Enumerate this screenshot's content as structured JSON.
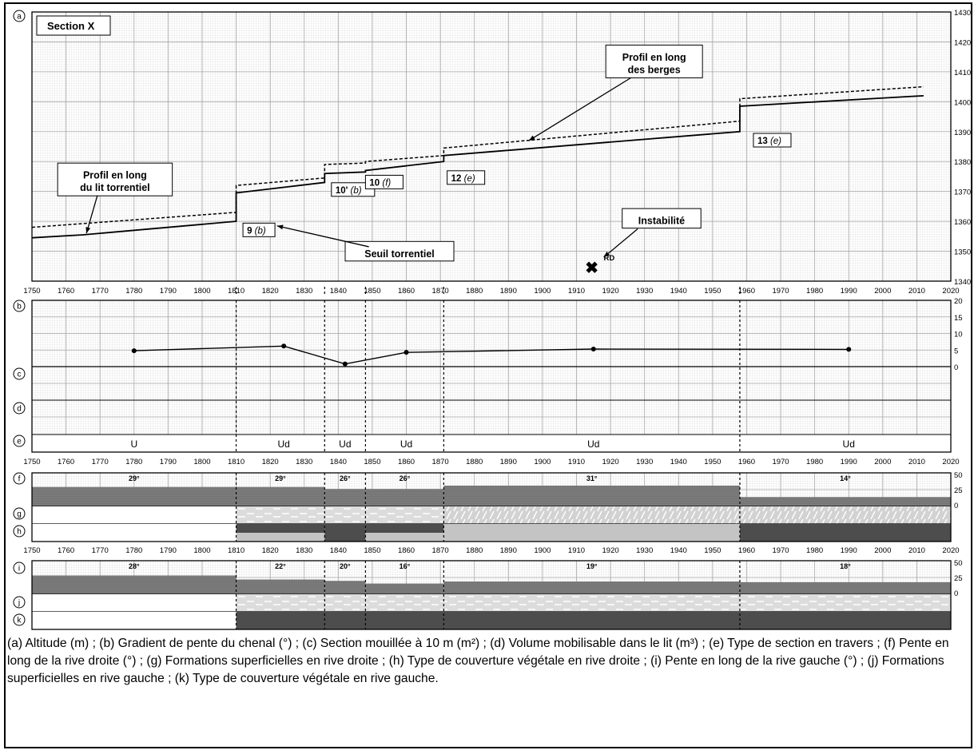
{
  "colors": {
    "grid_minor": "#d9d9d9",
    "grid_major": "#a6a6a6",
    "dark": "#4d4d4d",
    "medium": "#808080",
    "light": "#c4c4c4",
    "ink": "#000000"
  },
  "caption": "(a) Altitude (m) ; (b) Gradient de pente du chenal (°) ; (c) Section mouillée à 10 m (m²) ; (d) Volume mobilisable dans le lit (m³) ; (e) Type de section en travers ; (f) Pente en long de la rive droite (°) ; (g) Formations superficielles en rive droite ; (h) Type de couverture végétale en rive droite ; (i) Pente en long de la rive gauche (°) ; (j) Formations superficielles en rive gauche ; (k) Type de couverture végétale en rive gauche.",
  "chart_data": [
    {
      "panel": "a",
      "type": "line",
      "title": "Section X",
      "xlim": [
        1750,
        2020
      ],
      "ylim": [
        1340,
        1430
      ],
      "x_ticks": [
        1750,
        1760,
        1770,
        1780,
        1790,
        1800,
        1810,
        1820,
        1830,
        1840,
        1850,
        1860,
        1870,
        1880,
        1890,
        1900,
        1910,
        1920,
        1930,
        1940,
        1950,
        1960,
        1970,
        1980,
        1990,
        2000,
        2010,
        2020
      ],
      "y_ticks": [
        1340,
        1350,
        1360,
        1370,
        1380,
        1390,
        1400,
        1410,
        1420,
        1430
      ],
      "series": [
        {
          "name": "Profil en long du lit torrentiel",
          "style": "solid",
          "x": [
            1750,
            1765,
            1810,
            1810,
            1836,
            1836,
            1848,
            1848,
            1871,
            1871,
            1958,
            1958,
            2012
          ],
          "y": [
            1354.5,
            1355.5,
            1360,
            1369.5,
            1373,
            1376,
            1376.5,
            1377,
            1380,
            1382,
            1390,
            1398.5,
            1402
          ]
        },
        {
          "name": "Profil en long des berges",
          "style": "dashed",
          "x": [
            1750,
            1810,
            1810,
            1836,
            1836,
            1848,
            1848,
            1871,
            1871,
            1958,
            1958,
            2012
          ],
          "y": [
            1358,
            1363,
            1372,
            1374.5,
            1379,
            1379.5,
            1380,
            1382,
            1384.5,
            1393.5,
            1401,
            1405
          ]
        }
      ],
      "annotations": [
        {
          "text": "Profil en long du lit torrentiel",
          "x": 1765,
          "y": 1374
        },
        {
          "text": "Profil en long des berges",
          "x": 1930,
          "y": 1414
        },
        {
          "text": "Seuil torrentiel",
          "x": 1858,
          "y": 1350
        },
        {
          "text": "Instabilité",
          "x": 1935,
          "y": 1361
        },
        {
          "text": "RD",
          "x": 1918,
          "y": 1347
        }
      ],
      "marker": {
        "symbol": "✖",
        "x": 1914.5,
        "y": 1344.5
      },
      "sills": [
        {
          "num": "9",
          "code": "(b)",
          "x": 1812,
          "y": 1357
        },
        {
          "num": "10'",
          "code": "(b)",
          "x": 1838,
          "y": 1370.5
        },
        {
          "num": "10",
          "code": "(f)",
          "x": 1848,
          "y": 1373
        },
        {
          "num": "12",
          "code": "(e)",
          "x": 1872,
          "y": 1374.5
        },
        {
          "num": "13",
          "code": "(e)",
          "x": 1962,
          "y": 1387
        }
      ]
    },
    {
      "panel": "b",
      "type": "line",
      "xlim": [
        1750,
        2020
      ],
      "ylim": [
        0,
        20
      ],
      "y_ticks": [
        0,
        5,
        10,
        15,
        20
      ],
      "x": [
        1780,
        1824,
        1842,
        1860,
        1915,
        1990
      ],
      "values": [
        4.8,
        6.2,
        0.8,
        4.3,
        5.3,
        5.2
      ]
    },
    {
      "panel": "e",
      "type": "table",
      "boundaries": [
        1750,
        1810,
        1836,
        1848,
        1871,
        1958,
        2020
      ],
      "values": [
        "U",
        "Ud",
        "Ud",
        "Ud",
        "Ud",
        "Ud"
      ]
    },
    {
      "panel": "f",
      "type": "bar",
      "boundaries": [
        1750,
        1810,
        1836,
        1848,
        1871,
        1958,
        2020
      ],
      "values": [
        29,
        29,
        26,
        26,
        31,
        14
      ],
      "labels": [
        "29°",
        "29°",
        "26°",
        "26°",
        "31°",
        "14°"
      ],
      "y_ticks": [
        0,
        25,
        50
      ]
    },
    {
      "panel": "g",
      "type": "table",
      "segments": [
        {
          "x0": 1750,
          "x1": 1810,
          "fill": "none"
        },
        {
          "x0": 1810,
          "x1": 1871,
          "fill": "dashes"
        },
        {
          "x0": 1871,
          "x1": 1958,
          "fill": "hatch"
        },
        {
          "x0": 1958,
          "x1": 2020,
          "fill": "hatch"
        }
      ]
    },
    {
      "panel": "h",
      "type": "table",
      "segments": [
        {
          "x0": 1750,
          "x1": 1810,
          "fill": "none"
        },
        {
          "x0": 1810,
          "x1": 1836,
          "fill": "dark-over-light"
        },
        {
          "x0": 1836,
          "x1": 1848,
          "fill": "dark"
        },
        {
          "x0": 1848,
          "x1": 1871,
          "fill": "dark-over-light"
        },
        {
          "x0": 1871,
          "x1": 1958,
          "fill": "light"
        },
        {
          "x0": 1958,
          "x1": 2020,
          "fill": "dark"
        }
      ]
    },
    {
      "panel": "i",
      "type": "bar",
      "boundaries": [
        1750,
        1810,
        1836,
        1848,
        1871,
        1958,
        2020
      ],
      "values": [
        28,
        22,
        20,
        16,
        19,
        18
      ],
      "labels": [
        "28°",
        "22°",
        "20°",
        "16°",
        "19°",
        "18°"
      ],
      "y_ticks": [
        0,
        25,
        50
      ]
    },
    {
      "panel": "j",
      "type": "table",
      "segments": [
        {
          "x0": 1750,
          "x1": 1810,
          "fill": "none"
        },
        {
          "x0": 1810,
          "x1": 2020,
          "fill": "dashes"
        }
      ]
    },
    {
      "panel": "k",
      "type": "table",
      "segments": [
        {
          "x0": 1750,
          "x1": 1810,
          "fill": "none"
        },
        {
          "x0": 1810,
          "x1": 2020,
          "fill": "dark"
        }
      ]
    }
  ],
  "panel_letters": [
    "a",
    "b",
    "c",
    "d",
    "e",
    "f",
    "g",
    "h",
    "i",
    "j",
    "k"
  ]
}
